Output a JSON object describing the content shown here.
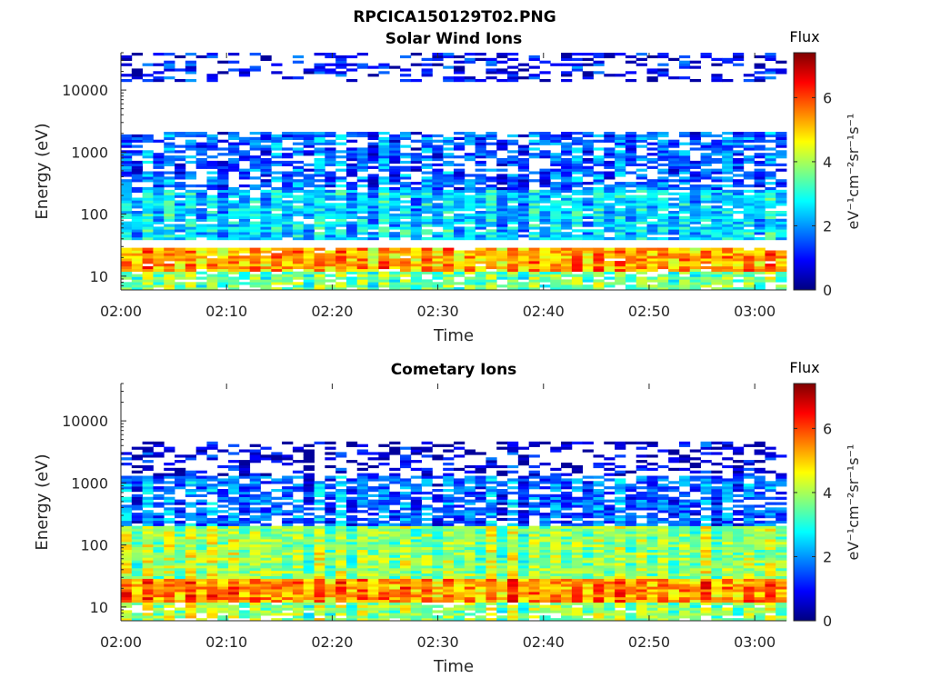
{
  "figure_title": "RPCICA150129T02.PNG",
  "chart_data": [
    {
      "type": "heatmap",
      "title": "Solar Wind Ions",
      "xlabel": "Time",
      "ylabel": "Energy (eV)",
      "x_ticks": [
        "02:00",
        "02:10",
        "02:20",
        "02:30",
        "02:40",
        "02:50",
        "03:00"
      ],
      "x_range": [
        "02:00",
        "03:03"
      ],
      "y_ticks": [
        10,
        100,
        1000,
        10000
      ],
      "y_tick_labels": [
        "10",
        "100",
        "1000",
        "10000"
      ],
      "y_range": [
        6,
        40000
      ],
      "y_scale": "log",
      "colorbar": {
        "label": "Flux",
        "units_label": "eV⁻¹cm⁻²sr⁻¹s⁻¹",
        "ticks": [
          0,
          2,
          4,
          6
        ],
        "tick_labels": [
          "0",
          "2",
          "4",
          "6"
        ],
        "range": [
          0,
          7.4
        ],
        "colormap": "jet"
      },
      "profile": {
        "high_sparse": [
          13000,
          40000,
          0.35,
          0.8
        ],
        "mid_band": [
          250,
          2200,
          0.7,
          1.5
        ],
        "low_mid": [
          40,
          250,
          0.9,
          2.4
        ],
        "low_band": [
          12,
          30,
          0.95,
          5.2
        ],
        "bottom": [
          6,
          12,
          0.85,
          3.5
        ]
      }
    },
    {
      "type": "heatmap",
      "title": "Cometary Ions",
      "xlabel": "Time",
      "ylabel": "Energy (eV)",
      "x_ticks": [
        "02:00",
        "02:10",
        "02:20",
        "02:30",
        "02:40",
        "02:50",
        "03:00"
      ],
      "x_range": [
        "02:00",
        "03:03"
      ],
      "y_ticks": [
        10,
        100,
        1000,
        10000
      ],
      "y_tick_labels": [
        "10",
        "100",
        "1000",
        "10000"
      ],
      "y_range": [
        6,
        40000
      ],
      "y_scale": "log",
      "colorbar": {
        "label": "Flux",
        "units_label": "eV⁻¹cm⁻²sr⁻¹s⁻¹",
        "ticks": [
          0,
          2,
          4,
          6
        ],
        "tick_labels": [
          "0",
          "2",
          "4",
          "6"
        ],
        "range": [
          0,
          7.4
        ],
        "colormap": "jet"
      },
      "profile": {
        "high_sparse": [
          1300,
          4500,
          0.35,
          0.5
        ],
        "mid_band": [
          200,
          1300,
          0.75,
          1.6
        ],
        "low_mid": [
          30,
          200,
          1.0,
          3.8
        ],
        "low_band": [
          12,
          30,
          1.0,
          5.4
        ],
        "bottom": [
          6,
          12,
          0.85,
          3.8
        ]
      }
    }
  ]
}
